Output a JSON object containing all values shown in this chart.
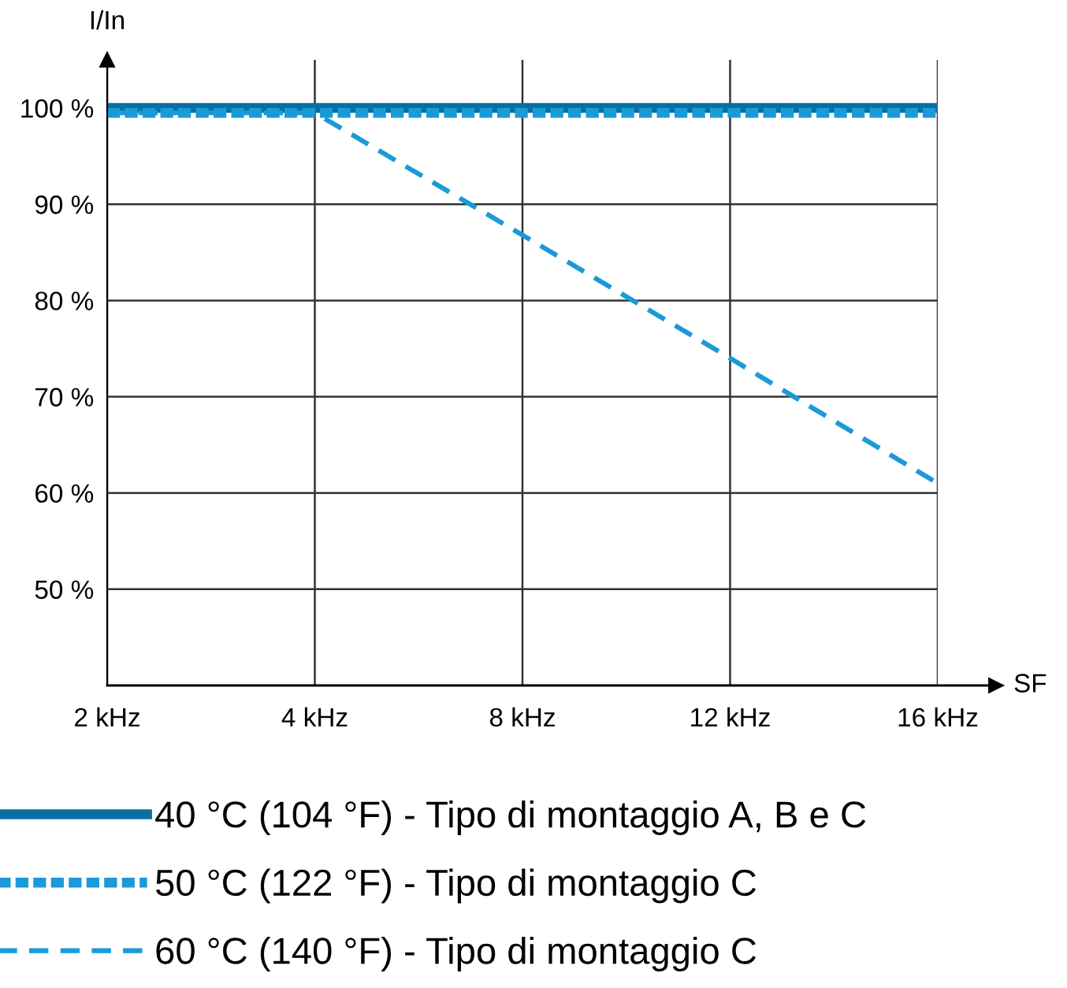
{
  "chart_data": {
    "type": "line",
    "ylabel": "I/In",
    "xlabel": "SF",
    "categories": [
      "2 kHz",
      "4 kHz",
      "8 kHz",
      "12 kHz",
      "16 kHz"
    ],
    "series": [
      {
        "name": "40 °C (104 °F) - Tipo di montaggio A, B e C",
        "color": "#0a6ea0",
        "line_style": "solid",
        "values": [
          100,
          100,
          100,
          100,
          100
        ]
      },
      {
        "name": "50 °C (122 °F) - Tipo di montaggio C",
        "color": "#1a9ad8",
        "line_style": "dotted",
        "values": [
          99.5,
          99.5,
          99.5,
          99.5,
          99.5
        ]
      },
      {
        "name": "60 °C (140 °F) - Tipo di montaggio C",
        "color": "#1a9ad8",
        "line_style": "dashed",
        "values": [
          99.5,
          99.5,
          86.8,
          74,
          61
        ]
      }
    ],
    "ylim": [
      40,
      105
    ],
    "yticks": [
      {
        "value": 50,
        "label": "50 %"
      },
      {
        "value": 60,
        "label": "60 %"
      },
      {
        "value": 70,
        "label": "70 %"
      },
      {
        "value": 80,
        "label": "80 %"
      },
      {
        "value": 90,
        "label": "90 %"
      },
      {
        "value": 100,
        "label": "100 %"
      }
    ],
    "grid": true,
    "legend": "bottom",
    "marker": "none"
  }
}
